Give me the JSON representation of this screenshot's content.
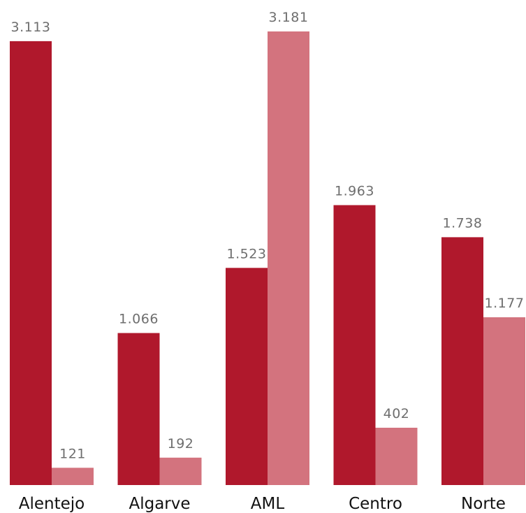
{
  "chart_data": {
    "type": "bar",
    "categories": [
      "Alentejo",
      "Algarve",
      "AML",
      "Centro",
      "Norte"
    ],
    "series": [
      {
        "values": [
          3113,
          1066,
          1523,
          1963,
          1738
        ],
        "labels": [
          "3.113",
          "1.066",
          "1.523",
          "1.963",
          "1.738"
        ],
        "color": "#b0182c"
      },
      {
        "values": [
          121,
          192,
          3181,
          402,
          1177
        ],
        "labels": [
          "121",
          "192",
          "3.181",
          "402",
          "1.177"
        ],
        "color": "#d3737e"
      }
    ],
    "title": "",
    "xlabel": "",
    "ylabel": "",
    "ylim": [
      0,
      3181
    ],
    "grid": false,
    "legend": "none"
  }
}
